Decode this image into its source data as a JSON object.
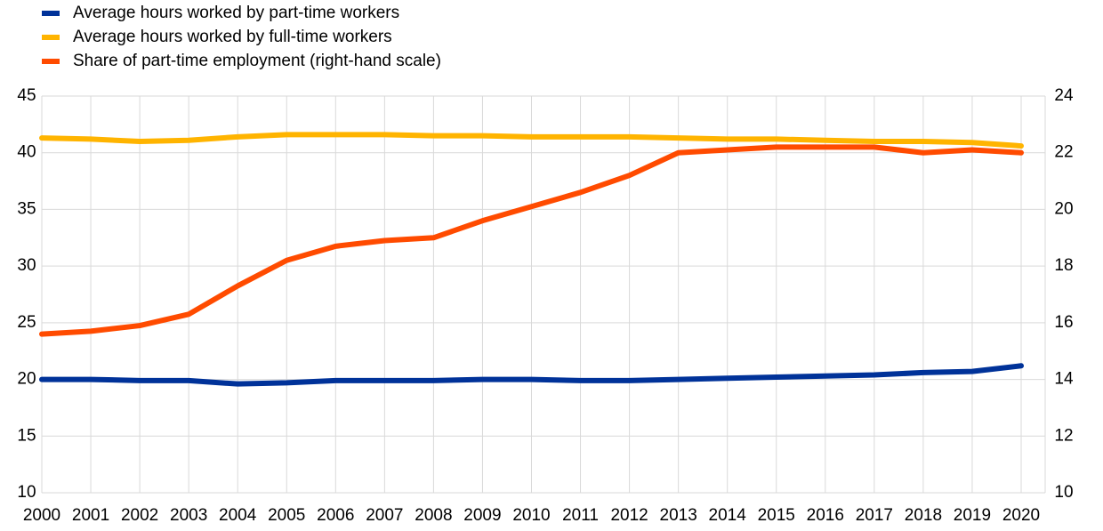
{
  "chart_data": {
    "type": "line",
    "categories": [
      "2000",
      "2001",
      "2002",
      "2003",
      "2004",
      "2005",
      "2006",
      "2007",
      "2008",
      "2009",
      "2010",
      "2011",
      "2012",
      "2013",
      "2014",
      "2015",
      "2016",
      "2017",
      "2018",
      "2019",
      "2020"
    ],
    "series": [
      {
        "name": "Average hours worked by part-time workers",
        "color": "#003299",
        "values": [
          20,
          20,
          19.9,
          19.9,
          19.6,
          19.7,
          19.9,
          19.9,
          19.9,
          20,
          20,
          19.9,
          19.9,
          20,
          20.1,
          20.2,
          20.3,
          20.4,
          20.6,
          20.7,
          21.2
        ]
      },
      {
        "name": "Average hours worked by full-time workers",
        "color": "#ffb400",
        "values": [
          41.3,
          41.2,
          41.0,
          41.1,
          41.4,
          41.6,
          41.6,
          41.6,
          41.5,
          41.5,
          41.4,
          41.4,
          41.4,
          41.3,
          41.2,
          41.2,
          41.1,
          41.0,
          41.0,
          40.9,
          40.6
        ]
      },
      {
        "name": "Share of part-time employment (right-hand scale)",
        "color": "#ff4b00",
        "axis": "y2",
        "values": [
          15.6,
          15.7,
          15.9,
          16.3,
          17.3,
          18.2,
          18.7,
          18.9,
          19.0,
          19.6,
          20.1,
          20.6,
          21.2,
          22.0,
          22.1,
          22.2,
          22.2,
          22.2,
          22.0,
          22.1,
          22.0
        ]
      }
    ],
    "ylim": [
      10,
      45
    ],
    "yticks": [
      10,
      15,
      20,
      25,
      30,
      35,
      40,
      45
    ],
    "y2lim": [
      10,
      24
    ],
    "y2ticks": [
      10,
      12,
      14,
      16,
      18,
      20,
      22,
      24
    ],
    "grid": true
  }
}
